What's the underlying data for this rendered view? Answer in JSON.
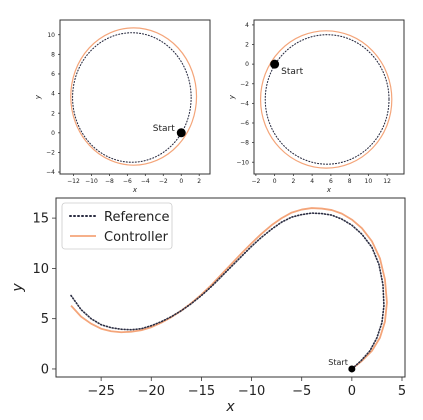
{
  "chart_data": [
    {
      "type": "line",
      "xlabel": "x",
      "ylabel": "y",
      "xlim": [
        -13.5,
        3.2
      ],
      "ylim": [
        -4.2,
        11.5
      ],
      "xticks": [
        -12,
        -10,
        -8,
        -6,
        -4,
        -2,
        0,
        2
      ],
      "yticks": [
        -4,
        -2,
        0,
        2,
        4,
        6,
        8,
        10
      ],
      "grid": false,
      "annotations": [
        {
          "text": "Start",
          "x": 0,
          "y": 0
        }
      ],
      "series": [
        {
          "style": "dotted",
          "color": "#2b2d42",
          "shape": "circle",
          "center": [
            -5.5,
            3.6
          ],
          "radius": 6.6
        },
        {
          "style": "solid",
          "color": "#f4a57a",
          "shape": "circle",
          "center": [
            -5.3,
            3.7
          ],
          "radius": 7.0
        }
      ]
    },
    {
      "type": "line",
      "xlabel": "x",
      "ylabel": "y",
      "xlim": [
        -2.2,
        13.8
      ],
      "ylim": [
        -11.2,
        4.5
      ],
      "xticks": [
        -2,
        0,
        2,
        4,
        6,
        8,
        10,
        12
      ],
      "yticks": [
        -10,
        -8,
        -6,
        -4,
        -2,
        0,
        2,
        4
      ],
      "grid": false,
      "annotations": [
        {
          "text": "Start",
          "x": 0,
          "y": 0
        }
      ],
      "series": [
        {
          "style": "dotted",
          "color": "#2b2d42",
          "shape": "circle",
          "center": [
            5.6,
            -3.6
          ],
          "radius": 6.6
        },
        {
          "style": "solid",
          "color": "#f4a57a",
          "shape": "circle",
          "center": [
            5.5,
            -3.6
          ],
          "radius": 7.0
        }
      ]
    },
    {
      "type": "line",
      "xlabel": "x",
      "ylabel": "y",
      "xlim": [
        -29.5,
        5.3
      ],
      "ylim": [
        -0.8,
        17
      ],
      "xticks": [
        -25,
        -20,
        -15,
        -10,
        -5,
        0,
        5
      ],
      "yticks": [
        0,
        5,
        10,
        15
      ],
      "grid": false,
      "legend": "top-left",
      "annotations": [
        {
          "text": "Start",
          "x": 0,
          "y": 0
        }
      ],
      "series": [
        {
          "name": "Reference",
          "style": "dotted",
          "color": "#2b2d42",
          "x": [
            -28,
            -27,
            -26,
            -25,
            -24,
            -23,
            -22,
            -21,
            -20,
            -19,
            -18,
            -17,
            -16,
            -15,
            -14,
            -13,
            -12,
            -11,
            -10,
            -9,
            -8,
            -7,
            -6,
            -5,
            -4,
            -3,
            -2,
            -1,
            0,
            1,
            2,
            2.7,
            3.1,
            3.2,
            3.0,
            2.5,
            1.8,
            0.9,
            0
          ],
          "y": [
            7.3,
            5.9,
            5.0,
            4.4,
            4.1,
            3.95,
            3.9,
            4.0,
            4.3,
            4.7,
            5.2,
            5.8,
            6.5,
            7.3,
            8.2,
            9.2,
            10.2,
            11.2,
            12.2,
            13.1,
            13.9,
            14.6,
            15.1,
            15.35,
            15.5,
            15.45,
            15.3,
            14.9,
            14.3,
            13.4,
            12.1,
            10.4,
            8.4,
            6.3,
            4.6,
            3.1,
            1.8,
            0.8,
            0
          ]
        },
        {
          "name": "Controller",
          "style": "solid",
          "color": "#f4a57a",
          "x": [
            -28,
            -27,
            -26,
            -25,
            -24,
            -23,
            -22,
            -21,
            -20,
            -19,
            -18,
            -17,
            -16,
            -15,
            -14,
            -13,
            -12,
            -11,
            -10,
            -9,
            -8,
            -7,
            -6,
            -5,
            -4,
            -3,
            -2,
            -1,
            0,
            1,
            2,
            2.8,
            3.3,
            3.5,
            3.3,
            2.8,
            2.0,
            1.0,
            0
          ],
          "y": [
            6.3,
            5.2,
            4.5,
            4.0,
            3.75,
            3.65,
            3.7,
            3.85,
            4.15,
            4.6,
            5.15,
            5.8,
            6.55,
            7.4,
            8.35,
            9.4,
            10.45,
            11.5,
            12.5,
            13.45,
            14.3,
            15.0,
            15.55,
            15.85,
            16.0,
            15.95,
            15.8,
            15.45,
            14.85,
            14.0,
            12.7,
            11.0,
            8.9,
            6.6,
            4.7,
            3.1,
            1.8,
            0.8,
            0
          ]
        }
      ]
    }
  ]
}
